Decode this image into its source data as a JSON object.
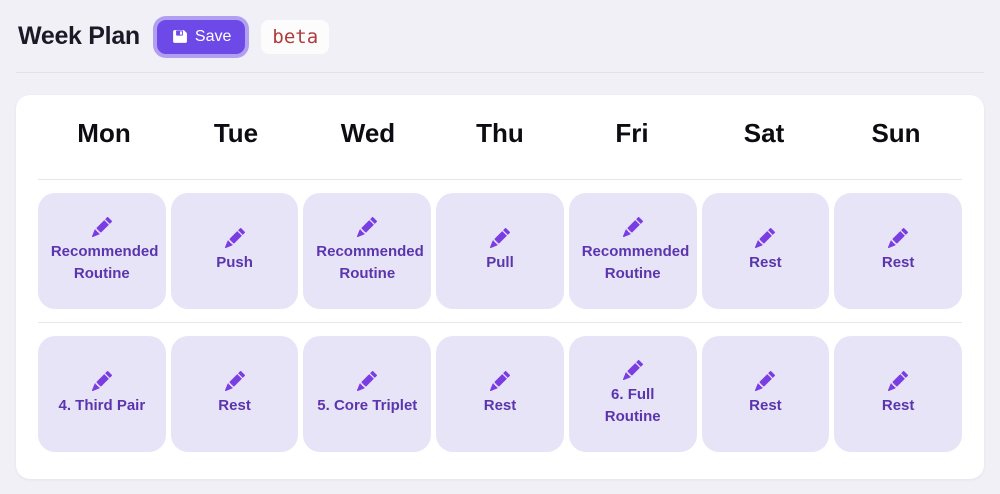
{
  "header": {
    "title": "Week Plan",
    "save_button": {
      "label": "Save",
      "icon": "floppy-disk-icon"
    },
    "beta_badge": "beta"
  },
  "week": {
    "days": [
      "Mon",
      "Tue",
      "Wed",
      "Thu",
      "Fri",
      "Sat",
      "Sun"
    ],
    "cell_icon": "pencil-icon",
    "rows": [
      {
        "cells": [
          "Recommended Routine",
          "Push",
          "Recommended Routine",
          "Pull",
          "Recommended Routine",
          "Rest",
          "Rest"
        ]
      },
      {
        "cells": [
          "4. Third Pair",
          "Rest",
          "5. Core Triplet",
          "Rest",
          "6. Full Routine",
          "Rest",
          "Rest"
        ]
      }
    ]
  },
  "colors": {
    "accent": "#6d49e8",
    "accent_ring": "#b1a0f1",
    "cell_background": "#e8e4f8",
    "cell_text": "#5b35ad",
    "pencil_icon": "#7a3de2",
    "beta_text": "#b13a3a",
    "page_background": "#f1f0f6"
  }
}
